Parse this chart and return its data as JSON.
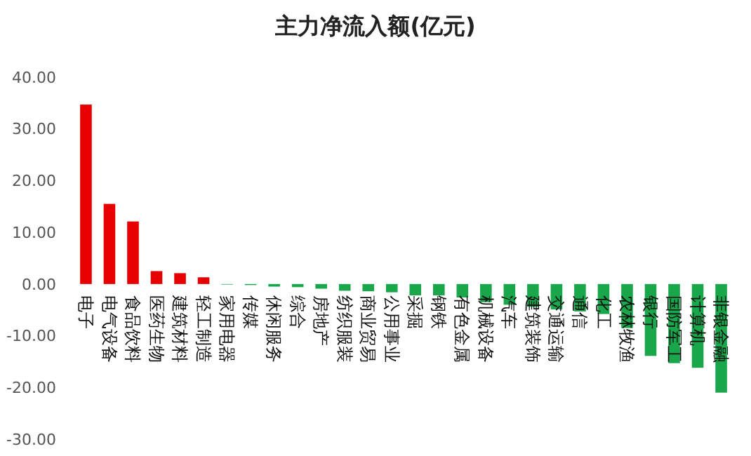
{
  "chart_data": {
    "type": "bar",
    "title": "主力净流入额(亿元)",
    "categories": [
      "电子",
      "电气设备",
      "食品饮料",
      "医药生物",
      "建筑材料",
      "轻工制造",
      "家用电器",
      "传媒",
      "休闲服务",
      "综合",
      "房地产",
      "纺织服装",
      "商业贸易",
      "公用事业",
      "采掘",
      "钢铁",
      "有色金属",
      "机械设备",
      "汽车",
      "建筑装饰",
      "交通运输",
      "通信",
      "化工",
      "农林牧渔",
      "银行",
      "国防军工",
      "计算机",
      "非银金融"
    ],
    "values": [
      34.7,
      15.5,
      12.1,
      2.5,
      2.1,
      1.3,
      -0.1,
      -0.2,
      -0.5,
      -0.6,
      -0.9,
      -1.3,
      -1.4,
      -1.6,
      -2.2,
      -2.2,
      -2.6,
      -3.5,
      -4.0,
      -4.4,
      -4.9,
      -5.3,
      -5.8,
      -8.5,
      -13.9,
      -15.3,
      -16.2,
      -21.0
    ],
    "colors": [
      "#e60000",
      "#e60000",
      "#e60000",
      "#e60000",
      "#e60000",
      "#e60000",
      "#1aa64b",
      "#1aa64b",
      "#1aa64b",
      "#1aa64b",
      "#1aa64b",
      "#1aa64b",
      "#1aa64b",
      "#1aa64b",
      "#1aa64b",
      "#1aa64b",
      "#1aa64b",
      "#1aa64b",
      "#1aa64b",
      "#1aa64b",
      "#1aa64b",
      "#1aa64b",
      "#1aa64b",
      "#1aa64b",
      "#1aa64b",
      "#1aa64b",
      "#1aa64b",
      "#1aa64b"
    ],
    "ylim": [
      -30,
      40
    ],
    "yticks": [
      {
        "value": -30,
        "label": "-30.00"
      },
      {
        "value": -20,
        "label": "-20.00"
      },
      {
        "value": -10,
        "label": "-10.00"
      },
      {
        "value": 0,
        "label": "0.00"
      },
      {
        "value": 10,
        "label": "10.00"
      },
      {
        "value": 20,
        "label": "20.00"
      },
      {
        "value": 30,
        "label": "30.00"
      },
      {
        "value": 40,
        "label": "40.00"
      }
    ],
    "grid": false
  }
}
